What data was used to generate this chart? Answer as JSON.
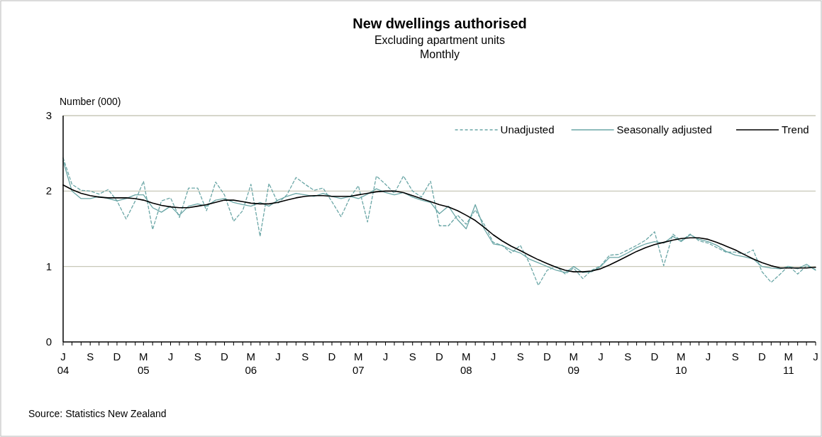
{
  "chart_data": {
    "type": "line",
    "title": "New dwellings authorised",
    "subtitle": "Excluding apartment units\nMonthly",
    "ylabel": "Number (000)",
    "annotations": [
      "Source: Statistics New Zealand"
    ],
    "x": [
      "2004-06",
      "2004-07",
      "2004-08",
      "2004-09",
      "2004-10",
      "2004-11",
      "2004-12",
      "2005-01",
      "2005-02",
      "2005-03",
      "2005-04",
      "2005-05",
      "2005-06",
      "2005-07",
      "2005-08",
      "2005-09",
      "2005-10",
      "2005-11",
      "2005-12",
      "2006-01",
      "2006-02",
      "2006-03",
      "2006-04",
      "2006-05",
      "2006-06",
      "2006-07",
      "2006-08",
      "2006-09",
      "2006-10",
      "2006-11",
      "2006-12",
      "2007-01",
      "2007-02",
      "2007-03",
      "2007-04",
      "2007-05",
      "2007-06",
      "2007-07",
      "2007-08",
      "2007-09",
      "2007-10",
      "2007-11",
      "2007-12",
      "2008-01",
      "2008-02",
      "2008-03",
      "2008-04",
      "2008-05",
      "2008-06",
      "2008-07",
      "2008-08",
      "2008-09",
      "2008-10",
      "2008-11",
      "2008-12",
      "2009-01",
      "2009-02",
      "2009-03",
      "2009-04",
      "2009-05",
      "2009-06",
      "2009-07",
      "2009-08",
      "2009-09",
      "2009-10",
      "2009-11",
      "2009-12",
      "2010-01",
      "2010-02",
      "2010-03",
      "2010-04",
      "2010-05",
      "2010-06",
      "2010-07",
      "2010-08",
      "2010-09",
      "2010-10",
      "2010-11",
      "2010-12",
      "2011-01",
      "2011-02",
      "2011-03",
      "2011-04",
      "2011-05",
      "2011-06"
    ],
    "series": [
      {
        "name": "Unadjusted",
        "color": "#6aa6a6",
        "line_style": "dashed",
        "values": [
          2.44,
          2.09,
          2.01,
          2.0,
          1.96,
          2.02,
          1.87,
          1.63,
          1.87,
          2.13,
          1.49,
          1.87,
          1.91,
          1.65,
          2.04,
          2.04,
          1.74,
          2.12,
          1.95,
          1.6,
          1.74,
          2.09,
          1.4,
          2.1,
          1.84,
          1.95,
          2.18,
          2.09,
          2.01,
          2.04,
          1.86,
          1.66,
          1.92,
          2.07,
          1.59,
          2.2,
          2.09,
          1.97,
          2.2,
          2.0,
          1.92,
          2.13,
          1.54,
          1.54,
          1.68,
          1.56,
          1.75,
          1.56,
          1.32,
          1.28,
          1.18,
          1.28,
          1.05,
          0.75,
          0.95,
          1.0,
          0.9,
          0.98,
          0.84,
          0.95,
          1.01,
          1.15,
          1.16,
          1.22,
          1.28,
          1.35,
          1.46,
          1.01,
          1.43,
          1.34,
          1.43,
          1.34,
          1.31,
          1.25,
          1.19,
          1.19,
          1.16,
          1.22,
          0.93,
          0.79,
          0.9,
          1.01,
          0.9,
          1.01,
          0.96
        ]
      },
      {
        "name": "Seasonally adjusted",
        "color": "#6aa6a6",
        "line_style": "solid",
        "values": [
          2.4,
          2.0,
          1.9,
          1.9,
          1.93,
          1.9,
          1.87,
          1.9,
          1.95,
          1.95,
          1.78,
          1.72,
          1.8,
          1.68,
          1.8,
          1.83,
          1.8,
          1.88,
          1.9,
          1.85,
          1.82,
          1.8,
          1.85,
          1.8,
          1.88,
          1.93,
          1.97,
          1.95,
          1.93,
          1.97,
          1.93,
          1.9,
          1.93,
          1.9,
          1.96,
          2.03,
          1.98,
          1.95,
          1.98,
          1.92,
          1.88,
          1.85,
          1.7,
          1.8,
          1.62,
          1.5,
          1.82,
          1.5,
          1.3,
          1.28,
          1.22,
          1.18,
          1.1,
          1.05,
          1.0,
          0.95,
          0.92,
          1.0,
          0.92,
          0.93,
          1.0,
          1.12,
          1.12,
          1.18,
          1.25,
          1.3,
          1.33,
          1.31,
          1.4,
          1.33,
          1.42,
          1.36,
          1.33,
          1.28,
          1.2,
          1.15,
          1.13,
          1.1,
          1.0,
          0.98,
          0.97,
          1.0,
          0.97,
          1.03,
          0.95
        ]
      },
      {
        "name": "Trend",
        "color": "#000000",
        "line_style": "solid",
        "values": [
          2.08,
          2.02,
          1.97,
          1.94,
          1.92,
          1.91,
          1.91,
          1.91,
          1.9,
          1.88,
          1.84,
          1.81,
          1.79,
          1.78,
          1.78,
          1.8,
          1.82,
          1.85,
          1.88,
          1.88,
          1.86,
          1.84,
          1.83,
          1.83,
          1.85,
          1.88,
          1.91,
          1.93,
          1.94,
          1.94,
          1.93,
          1.93,
          1.93,
          1.95,
          1.97,
          1.99,
          2.0,
          2.0,
          1.98,
          1.94,
          1.9,
          1.86,
          1.82,
          1.79,
          1.74,
          1.68,
          1.61,
          1.52,
          1.42,
          1.34,
          1.27,
          1.21,
          1.15,
          1.09,
          1.04,
          0.99,
          0.95,
          0.93,
          0.93,
          0.94,
          0.97,
          1.02,
          1.08,
          1.14,
          1.2,
          1.25,
          1.29,
          1.32,
          1.35,
          1.37,
          1.38,
          1.38,
          1.36,
          1.32,
          1.27,
          1.22,
          1.16,
          1.1,
          1.05,
          1.01,
          0.98,
          0.98,
          0.98,
          0.98,
          0.99
        ]
      }
    ],
    "xlim": [
      "2004-06",
      "2011-06"
    ],
    "xticks": [
      {
        "value": "2004-06",
        "label": "J\n04"
      },
      {
        "value": "2004-07",
        "label": null
      },
      {
        "value": "2004-08",
        "label": null
      },
      {
        "value": "2004-09",
        "label": "S"
      },
      {
        "value": "2004-10",
        "label": null
      },
      {
        "value": "2004-11",
        "label": null
      },
      {
        "value": "2004-12",
        "label": "D"
      },
      {
        "value": "2005-01",
        "label": null
      },
      {
        "value": "2005-02",
        "label": null
      },
      {
        "value": "2005-03",
        "label": "M\n05"
      },
      {
        "value": "2005-04",
        "label": null
      },
      {
        "value": "2005-05",
        "label": null
      },
      {
        "value": "2005-06",
        "label": "J"
      },
      {
        "value": "2005-07",
        "label": null
      },
      {
        "value": "2005-08",
        "label": null
      },
      {
        "value": "2005-09",
        "label": "S"
      },
      {
        "value": "2005-10",
        "label": null
      },
      {
        "value": "2005-11",
        "label": null
      },
      {
        "value": "2005-12",
        "label": "D"
      },
      {
        "value": "2006-01",
        "label": null
      },
      {
        "value": "2006-02",
        "label": null
      },
      {
        "value": "2006-03",
        "label": "M\n06"
      },
      {
        "value": "2006-04",
        "label": null
      },
      {
        "value": "2006-05",
        "label": null
      },
      {
        "value": "2006-06",
        "label": "J"
      },
      {
        "value": "2006-07",
        "label": null
      },
      {
        "value": "2006-08",
        "label": null
      },
      {
        "value": "2006-09",
        "label": "S"
      },
      {
        "value": "2006-10",
        "label": null
      },
      {
        "value": "2006-11",
        "label": null
      },
      {
        "value": "2006-12",
        "label": "D"
      },
      {
        "value": "2007-01",
        "label": null
      },
      {
        "value": "2007-02",
        "label": null
      },
      {
        "value": "2007-03",
        "label": "M\n07"
      },
      {
        "value": "2007-04",
        "label": null
      },
      {
        "value": "2007-05",
        "label": null
      },
      {
        "value": "2007-06",
        "label": "J"
      },
      {
        "value": "2007-07",
        "label": null
      },
      {
        "value": "2007-08",
        "label": null
      },
      {
        "value": "2007-09",
        "label": "S"
      },
      {
        "value": "2007-10",
        "label": null
      },
      {
        "value": "2007-11",
        "label": null
      },
      {
        "value": "2007-12",
        "label": "D"
      },
      {
        "value": "2008-01",
        "label": null
      },
      {
        "value": "2008-02",
        "label": null
      },
      {
        "value": "2008-03",
        "label": "M\n08"
      },
      {
        "value": "2008-04",
        "label": null
      },
      {
        "value": "2008-05",
        "label": null
      },
      {
        "value": "2008-06",
        "label": "J"
      },
      {
        "value": "2008-07",
        "label": null
      },
      {
        "value": "2008-08",
        "label": null
      },
      {
        "value": "2008-09",
        "label": "S"
      },
      {
        "value": "2008-10",
        "label": null
      },
      {
        "value": "2008-11",
        "label": null
      },
      {
        "value": "2008-12",
        "label": "D"
      },
      {
        "value": "2009-01",
        "label": null
      },
      {
        "value": "2009-02",
        "label": null
      },
      {
        "value": "2009-03",
        "label": "M\n09"
      },
      {
        "value": "2009-04",
        "label": null
      },
      {
        "value": "2009-05",
        "label": null
      },
      {
        "value": "2009-06",
        "label": "J"
      },
      {
        "value": "2009-07",
        "label": null
      },
      {
        "value": "2009-08",
        "label": null
      },
      {
        "value": "2009-09",
        "label": "S"
      },
      {
        "value": "2009-10",
        "label": null
      },
      {
        "value": "2009-11",
        "label": null
      },
      {
        "value": "2009-12",
        "label": "D"
      },
      {
        "value": "2010-01",
        "label": null
      },
      {
        "value": "2010-02",
        "label": null
      },
      {
        "value": "2010-03",
        "label": "M\n10"
      },
      {
        "value": "2010-04",
        "label": null
      },
      {
        "value": "2010-05",
        "label": null
      },
      {
        "value": "2010-06",
        "label": "J"
      },
      {
        "value": "2010-07",
        "label": null
      },
      {
        "value": "2010-08",
        "label": null
      },
      {
        "value": "2010-09",
        "label": "S"
      },
      {
        "value": "2010-10",
        "label": null
      },
      {
        "value": "2010-11",
        "label": null
      },
      {
        "value": "2010-12",
        "label": "D"
      },
      {
        "value": "2011-01",
        "label": null
      },
      {
        "value": "2011-02",
        "label": null
      },
      {
        "value": "2011-03",
        "label": "M\n11"
      },
      {
        "value": "2011-04",
        "label": null
      },
      {
        "value": "2011-05",
        "label": null
      },
      {
        "value": "2011-06",
        "label": "J"
      }
    ],
    "ylim": [
      0,
      3
    ],
    "yticks": [
      0,
      1,
      2,
      3
    ],
    "grid": "y",
    "legend": "top right",
    "marker": "none"
  }
}
